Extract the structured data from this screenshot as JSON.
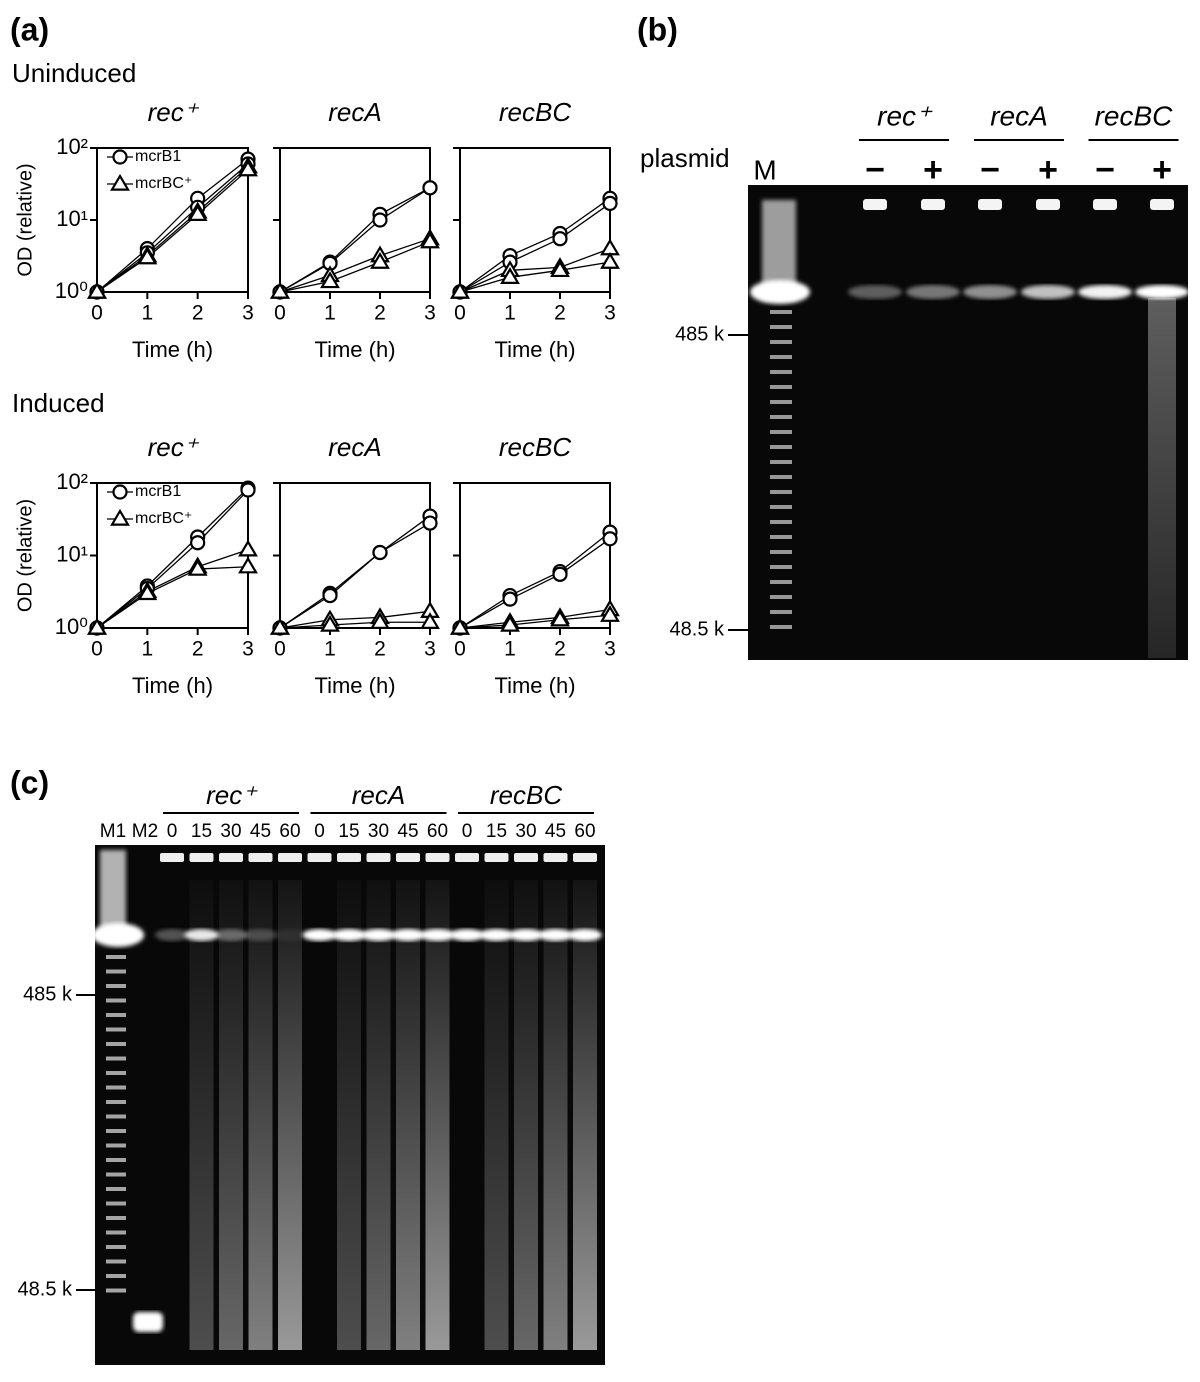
{
  "panel_labels": {
    "a": "(a)",
    "b": "(b)",
    "c": "(c)"
  },
  "groups": [
    "Uninduced",
    "Induced"
  ],
  "chart_data": [
    {
      "type": "line",
      "title": "rec⁺",
      "x": [
        0,
        1,
        2,
        3
      ],
      "xlim": [
        0,
        3
      ],
      "xticks": [
        0,
        1,
        2,
        3
      ],
      "ylim": [
        1,
        100
      ],
      "log_y": true,
      "yticks": [
        {
          "value": 1,
          "label": "10⁰"
        },
        {
          "value": 10,
          "label": "10¹"
        },
        {
          "value": 100,
          "label": "10²"
        }
      ],
      "ytick_labels": true,
      "xlabel": "Time (h)",
      "ylabel": "OD (relative)",
      "legend": true,
      "series": [
        {
          "name": "mcrB1",
          "marker": "circle",
          "color": "#000000",
          "values": [
            1,
            4,
            20,
            70
          ]
        },
        {
          "name": "mcrB1",
          "marker": "circle",
          "color": "#000000",
          "values": [
            1,
            3.5,
            15,
            60
          ]
        },
        {
          "name": "mcrBC⁺",
          "marker": "triangle",
          "color": "#000000",
          "values": [
            1,
            3.2,
            13,
            55
          ]
        },
        {
          "name": "mcrBC⁺",
          "marker": "triangle",
          "color": "#000000",
          "values": [
            1,
            3,
            12,
            50
          ]
        }
      ]
    },
    {
      "type": "line",
      "title": "recA",
      "x": [
        0,
        1,
        2,
        3
      ],
      "xlim": [
        0,
        3
      ],
      "xticks": [
        0,
        1,
        2,
        3
      ],
      "ylim": [
        1,
        100
      ],
      "log_y": true,
      "yticks": [
        1,
        10,
        100
      ],
      "ytick_labels": false,
      "xlabel": "Time (h)",
      "legend": false,
      "series": [
        {
          "name": "mcrB1",
          "marker": "circle",
          "color": "#000000",
          "values": [
            1,
            2.6,
            12,
            28
          ]
        },
        {
          "name": "mcrB1",
          "marker": "circle",
          "color": "#000000",
          "values": [
            1,
            2.5,
            10,
            28
          ]
        },
        {
          "name": "mcrBC⁺",
          "marker": "triangle",
          "color": "#000000",
          "values": [
            1,
            1.7,
            3.2,
            5.5
          ]
        },
        {
          "name": "mcrBC⁺",
          "marker": "triangle",
          "color": "#000000",
          "values": [
            1,
            1.4,
            2.6,
            5
          ]
        }
      ]
    },
    {
      "type": "line",
      "title": "recBC",
      "x": [
        0,
        1,
        2,
        3
      ],
      "xlim": [
        0,
        3
      ],
      "xticks": [
        0,
        1,
        2,
        3
      ],
      "ylim": [
        1,
        100
      ],
      "log_y": true,
      "yticks": [
        1,
        10,
        100
      ],
      "ytick_labels": false,
      "xlabel": "Time (h)",
      "legend": false,
      "series": [
        {
          "name": "mcrB1",
          "marker": "circle",
          "color": "#000000",
          "values": [
            1,
            3.2,
            6.5,
            20
          ]
        },
        {
          "name": "mcrB1",
          "marker": "circle",
          "color": "#000000",
          "values": [
            1,
            2.6,
            5.5,
            17
          ]
        },
        {
          "name": "mcrBC⁺",
          "marker": "triangle",
          "color": "#000000",
          "values": [
            1,
            2,
            2.2,
            4
          ]
        },
        {
          "name": "mcrBC⁺",
          "marker": "triangle",
          "color": "#000000",
          "values": [
            1,
            1.6,
            2,
            2.6
          ]
        }
      ]
    },
    {
      "type": "line",
      "title": "rec⁺",
      "x": [
        0,
        1,
        2,
        3
      ],
      "xlim": [
        0,
        3
      ],
      "xticks": [
        0,
        1,
        2,
        3
      ],
      "ylim": [
        1,
        100
      ],
      "log_y": true,
      "yticks": [
        {
          "value": 1,
          "label": "10⁰"
        },
        {
          "value": 10,
          "label": "10¹"
        },
        {
          "value": 100,
          "label": "10²"
        }
      ],
      "ytick_labels": true,
      "xlabel": "Time (h)",
      "ylabel": "OD (relative)",
      "legend": true,
      "series": [
        {
          "name": "mcrB1",
          "marker": "circle",
          "color": "#000000",
          "values": [
            1,
            3.8,
            18,
            85
          ]
        },
        {
          "name": "mcrB1",
          "marker": "circle",
          "color": "#000000",
          "values": [
            1,
            3.5,
            15,
            80
          ]
        },
        {
          "name": "mcrBC⁺",
          "marker": "triangle",
          "color": "#000000",
          "values": [
            1,
            3.2,
            7,
            12
          ]
        },
        {
          "name": "mcrBC⁺",
          "marker": "triangle",
          "color": "#000000",
          "values": [
            1,
            3,
            6.5,
            7
          ]
        }
      ]
    },
    {
      "type": "line",
      "title": "recA",
      "x": [
        0,
        1,
        2,
        3
      ],
      "xlim": [
        0,
        3
      ],
      "xticks": [
        0,
        1,
        2,
        3
      ],
      "ylim": [
        1,
        100
      ],
      "log_y": true,
      "yticks": [
        1,
        10,
        100
      ],
      "ytick_labels": false,
      "xlabel": "Time (h)",
      "legend": false,
      "series": [
        {
          "name": "mcrB1",
          "marker": "circle",
          "color": "#000000",
          "values": [
            1,
            3,
            11,
            35
          ]
        },
        {
          "name": "mcrB1",
          "marker": "circle",
          "color": "#000000",
          "values": [
            1,
            2.8,
            11,
            28
          ]
        },
        {
          "name": "mcrBC⁺",
          "marker": "triangle",
          "color": "#000000",
          "values": [
            1,
            1.3,
            1.4,
            1.7
          ]
        },
        {
          "name": "mcrBC⁺",
          "marker": "triangle",
          "color": "#000000",
          "values": [
            1,
            1.1,
            1.2,
            1.2
          ]
        }
      ]
    },
    {
      "type": "line",
      "title": "recBC",
      "x": [
        0,
        1,
        2,
        3
      ],
      "xlim": [
        0,
        3
      ],
      "xticks": [
        0,
        1,
        2,
        3
      ],
      "ylim": [
        1,
        100
      ],
      "log_y": true,
      "yticks": [
        1,
        10,
        100
      ],
      "ytick_labels": false,
      "xlabel": "Time (h)",
      "legend": false,
      "series": [
        {
          "name": "mcrB1",
          "marker": "circle",
          "color": "#000000",
          "values": [
            1,
            2.8,
            6,
            21
          ]
        },
        {
          "name": "mcrB1",
          "marker": "circle",
          "color": "#000000",
          "values": [
            1,
            2.5,
            5.5,
            17
          ]
        },
        {
          "name": "mcrBC⁺",
          "marker": "triangle",
          "color": "#000000",
          "values": [
            1,
            1.2,
            1.4,
            1.8
          ]
        },
        {
          "name": "mcrBC⁺",
          "marker": "triangle",
          "color": "#000000",
          "values": [
            1,
            1.1,
            1.3,
            1.5
          ]
        }
      ]
    }
  ],
  "gel_b": {
    "strains": [
      "rec⁺",
      "recA",
      "recBC"
    ],
    "plasmid": "plasmid",
    "marker": "M",
    "lanes": [
      "−",
      "+",
      "−",
      "+",
      "−",
      "+"
    ],
    "size_markers": [
      "485 k",
      "48.5 k"
    ]
  },
  "gel_c": {
    "markers": [
      "M1",
      "M2"
    ],
    "strains": [
      "rec⁺",
      "recA",
      "recBC"
    ],
    "times": [
      "0",
      "15",
      "30",
      "45",
      "60"
    ],
    "size_markers": [
      "485 k",
      "48.5 k"
    ]
  }
}
